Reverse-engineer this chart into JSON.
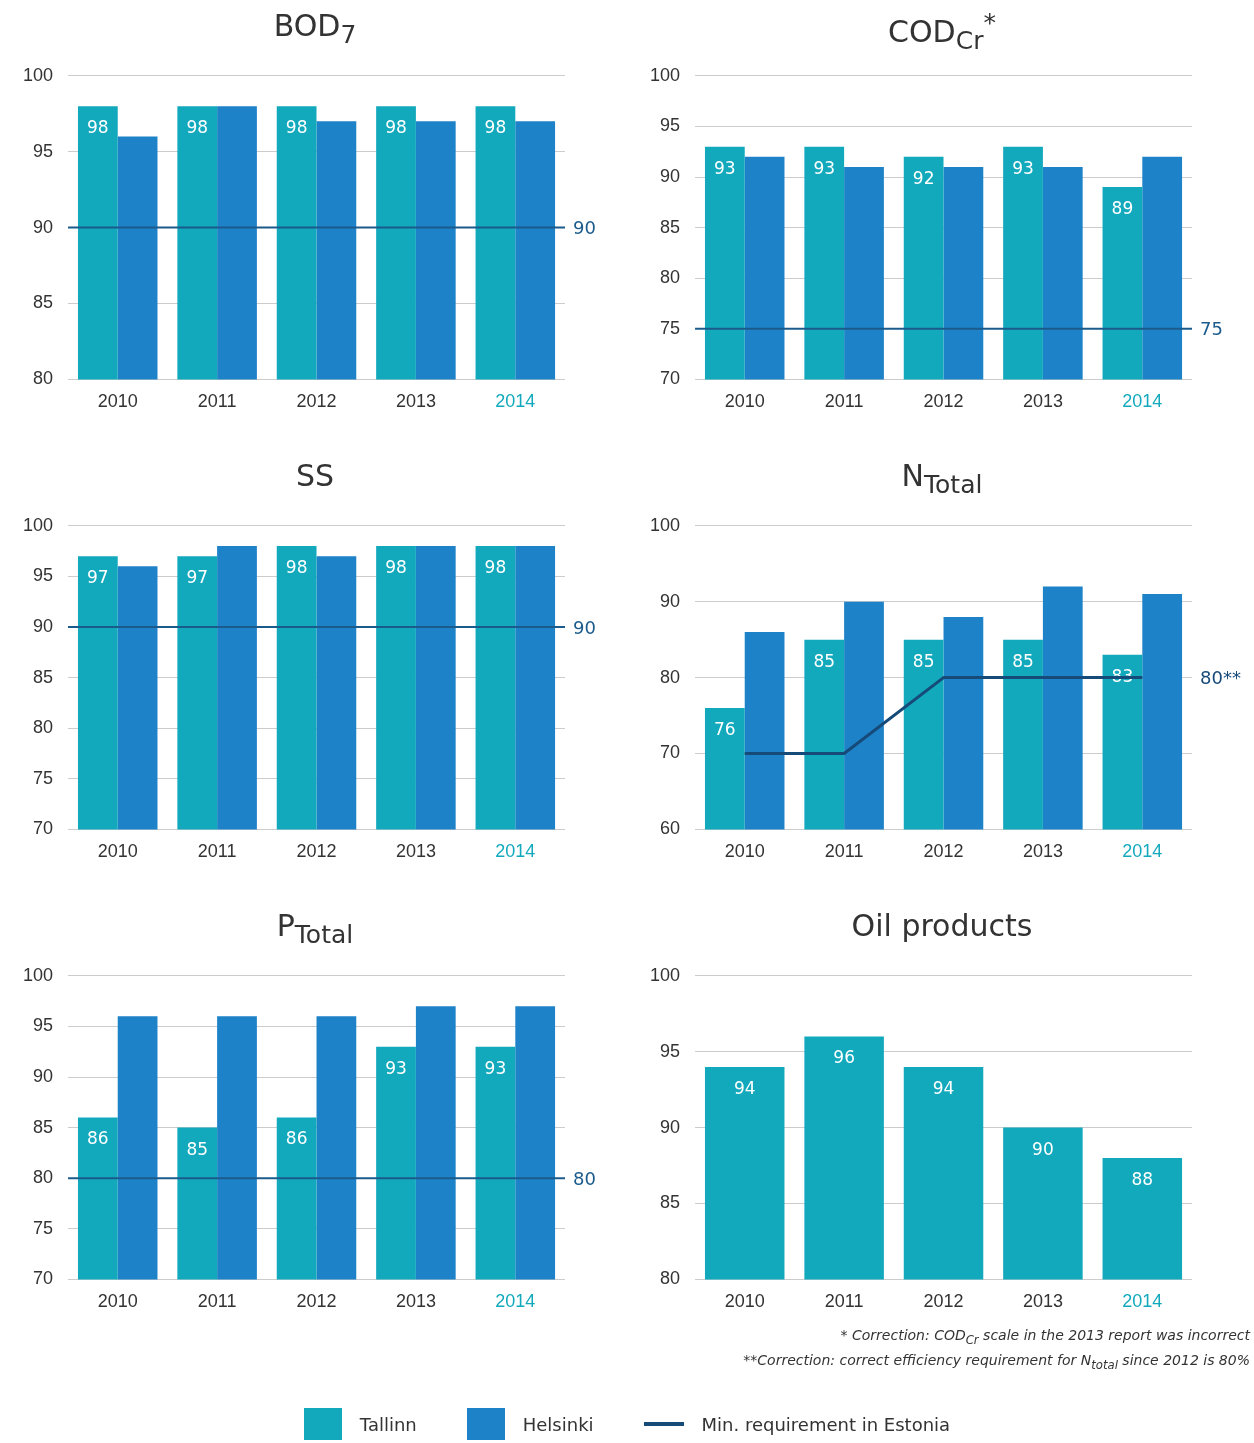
{
  "chart_data": [
    {
      "type": "bar",
      "title": "BOD$_{7}$",
      "categories": [
        "2010",
        "2011",
        "2012",
        "2013",
        "2014"
      ],
      "series": [
        {
          "color": "#13a9bd",
          "values": [
            98,
            98,
            98,
            98,
            98
          ],
          "value_labels": [
            "98",
            "98",
            "98",
            "98",
            "98"
          ]
        },
        {
          "color": "#1d82c8",
          "values": [
            96,
            98,
            97,
            97,
            97
          ]
        }
      ],
      "ylim": [
        80,
        100
      ],
      "yticks": [
        80,
        85,
        90,
        95,
        100
      ],
      "grid": "y",
      "ref_lines": [
        {
          "axis": "y",
          "value": 90,
          "label": "90",
          "color": "#1b5b8c"
        }
      ]
    },
    {
      "type": "bar",
      "title": "COD$_{Cr}$$^{*}$",
      "categories": [
        "2010",
        "2011",
        "2012",
        "2013",
        "2014"
      ],
      "series": [
        {
          "color": "#13a9bd",
          "values": [
            93,
            93,
            92,
            93,
            89
          ],
          "value_labels": [
            "93",
            "93",
            "92",
            "93",
            "89"
          ]
        },
        {
          "color": "#1d82c8",
          "values": [
            92,
            91,
            91,
            91,
            92
          ]
        }
      ],
      "ylim": [
        70,
        100
      ],
      "yticks": [
        70,
        75,
        80,
        85,
        90,
        95,
        100
      ],
      "grid": "y",
      "ref_lines": [
        {
          "axis": "y",
          "value": 75,
          "label": "75",
          "color": "#1b5b8c"
        }
      ]
    },
    {
      "type": "bar",
      "title": "SS",
      "categories": [
        "2010",
        "2011",
        "2012",
        "2013",
        "2014"
      ],
      "series": [
        {
          "color": "#13a9bd",
          "values": [
            97,
            97,
            98,
            98,
            98
          ],
          "value_labels": [
            "97",
            "97",
            "98",
            "98",
            "98"
          ]
        },
        {
          "color": "#1d82c8",
          "values": [
            96,
            98,
            97,
            98,
            98
          ]
        }
      ],
      "ylim": [
        70,
        100
      ],
      "yticks": [
        70,
        75,
        80,
        85,
        90,
        95,
        100
      ],
      "grid": "y",
      "ref_lines": [
        {
          "axis": "y",
          "value": 90,
          "label": "90",
          "color": "#1b5b8c"
        }
      ]
    },
    {
      "type": "bar",
      "title": "N$_{Total}$",
      "categories": [
        "2010",
        "2011",
        "2012",
        "2013",
        "2014"
      ],
      "series": [
        {
          "name": "Tallinn",
          "color": "#13a9bd",
          "values": [
            76,
            85,
            85,
            85,
            83
          ],
          "value_labels": [
            "76",
            "85",
            "85",
            "85",
            "83"
          ]
        },
        {
          "name": "Helsinki",
          "color": "#1d82c8",
          "values": [
            86,
            90,
            88,
            92,
            91
          ]
        },
        {
          "name": "Min. requirement in Estonia",
          "type": "line",
          "color": "#164a78",
          "values": [
            70,
            70,
            80,
            80,
            80
          ]
        }
      ],
      "ylim": [
        60,
        100
      ],
      "yticks": [
        60,
        70,
        80,
        90,
        100
      ],
      "grid": "y",
      "legend": "bottom",
      "marker": "none",
      "annotations": [
        "80**"
      ]
    },
    {
      "type": "bar",
      "title": "P$_{Total}$",
      "categories": [
        "2010",
        "2011",
        "2012",
        "2013",
        "2014"
      ],
      "series": [
        {
          "color": "#13a9bd",
          "values": [
            86,
            85,
            86,
            93,
            93
          ],
          "value_labels": [
            "86",
            "85",
            "86",
            "93",
            "93"
          ]
        },
        {
          "color": "#1d82c8",
          "values": [
            96,
            96,
            96,
            97,
            97
          ]
        }
      ],
      "ylim": [
        70,
        100
      ],
      "yticks": [
        70,
        75,
        80,
        85,
        90,
        95,
        100
      ],
      "grid": "y",
      "ref_lines": [
        {
          "axis": "y",
          "value": 80,
          "label": "80",
          "color": "#1b5b8c"
        }
      ]
    },
    {
      "type": "bar",
      "title": "Oil products",
      "categories": [
        "2010",
        "2011",
        "2012",
        "2013",
        "2014"
      ],
      "series": [
        {
          "color": "#13a9bd",
          "values": [
            94,
            96,
            94,
            90,
            88
          ],
          "value_labels": [
            "94",
            "96",
            "94",
            "90",
            "88"
          ]
        }
      ],
      "ylim": [
        80,
        100
      ],
      "yticks": [
        80,
        85,
        90,
        95,
        100
      ],
      "grid": "y",
      "annotations": [
        "* Correction: COD$_{Cr}$ scale in the 2013 report was incorrect",
        "**Correction: correct efficiency requirement for N$_{total}$ since 2012 is 80%"
      ]
    }
  ]
}
